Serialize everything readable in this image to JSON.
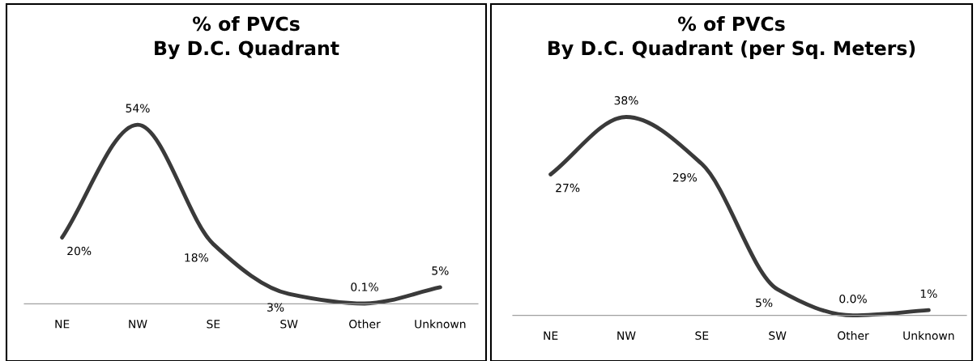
{
  "chart_data": [
    {
      "type": "line",
      "title": "% of PVCs\nBy D.C. Quadrant",
      "categories": [
        "NE",
        "NW",
        "SE",
        "SW",
        "Other",
        "Unknown"
      ],
      "series": [
        {
          "color": "#3a3a3a",
          "values": [
            20,
            54,
            18,
            3,
            0.1,
            5
          ],
          "value_labels": [
            "20%",
            "54%",
            "18%",
            "3%",
            "0.1%",
            "5%"
          ]
        }
      ],
      "grid": false,
      "marker": "none",
      "line_style": "solid"
    },
    {
      "type": "line",
      "title": "% of PVCs\nBy D.C. Quadrant (per Sq. Meters)",
      "categories": [
        "NE",
        "NW",
        "SE",
        "SW",
        "Other",
        "Unknown"
      ],
      "series": [
        {
          "color": "#3a3a3a",
          "values": [
            27,
            38,
            29,
            5,
            0.0,
            1
          ],
          "value_labels": [
            "27%",
            "38%",
            "29%",
            "5%",
            "0.0%",
            "1%"
          ]
        }
      ],
      "grid": false,
      "marker": "none",
      "line_style": "solid"
    }
  ]
}
